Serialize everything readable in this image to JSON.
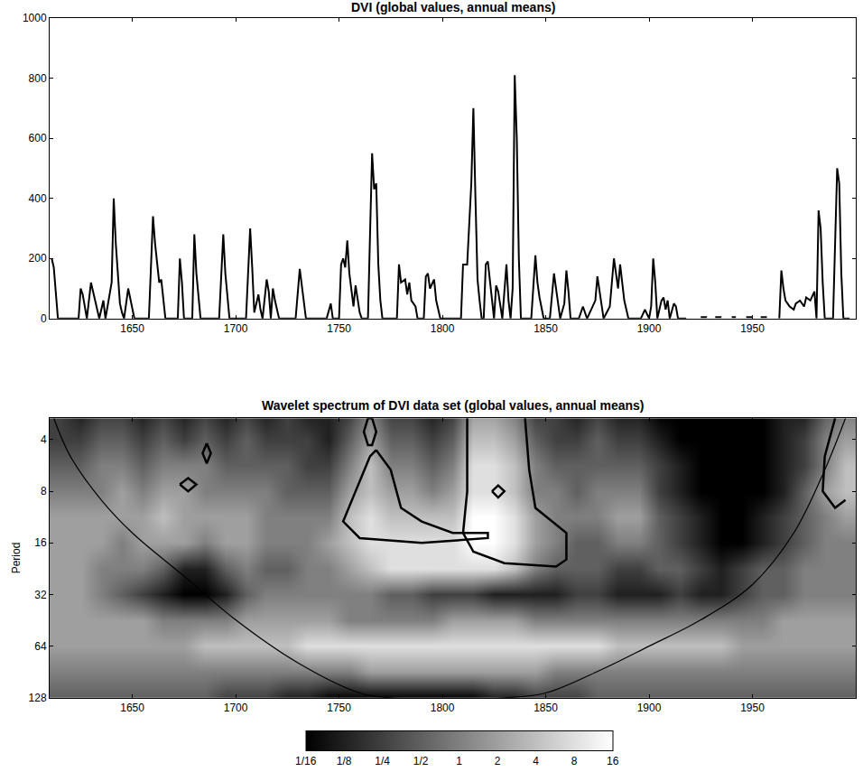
{
  "chart_data": [
    {
      "type": "line",
      "title": "DVI (global values, annual means)",
      "color": "#000000",
      "xlim": [
        1610,
        2000
      ],
      "xticks": [
        1650,
        1700,
        1750,
        1800,
        1850,
        1900,
        1950
      ],
      "ylim": [
        0,
        1000
      ],
      "yticks": [
        0,
        200,
        400,
        600,
        800,
        1000
      ],
      "x": [
        1611,
        1612,
        1614,
        1624,
        1625,
        1626,
        1628,
        1630,
        1632,
        1634,
        1636,
        1637,
        1640,
        1641,
        1642,
        1644,
        1645,
        1646,
        1648,
        1650,
        1651,
        1658,
        1660,
        1661,
        1663,
        1664,
        1666,
        1672,
        1673,
        1674,
        1675,
        1679,
        1680,
        1681,
        1683,
        1692,
        1694,
        1695,
        1697,
        1705,
        1707,
        1708,
        1709,
        1711,
        1712,
        1713,
        1715,
        1716,
        1717,
        1718,
        1719,
        1721,
        1729,
        1731,
        1732,
        1734,
        1744,
        1746,
        1747,
        1750,
        1751,
        1752,
        1753,
        1754,
        1755,
        1757,
        1758,
        1760,
        1761,
        1764,
        1765,
        1766,
        1767,
        1768,
        1769,
        1770,
        1771,
        1778,
        1779,
        1780,
        1782,
        1783,
        1784,
        1785,
        1787,
        1788,
        1791,
        1792,
        1793,
        1794,
        1796,
        1797,
        1799,
        1809,
        1810,
        1812,
        1814,
        1815,
        1816,
        1817,
        1818,
        1819,
        1820,
        1821,
        1822,
        1823,
        1825,
        1826,
        1827,
        1829,
        1831,
        1832,
        1833,
        1834,
        1835,
        1836,
        1837,
        1838,
        1843,
        1845,
        1846,
        1847,
        1849,
        1852,
        1854,
        1855,
        1857,
        1859,
        1860,
        1861,
        1862,
        1866,
        1868,
        1870,
        1874,
        1875,
        1876,
        1878,
        1881,
        1883,
        1884,
        1885,
        1886,
        1887,
        1888,
        1890,
        1896,
        1898,
        1900,
        1901,
        1902,
        1903,
        1904,
        1906,
        1907,
        1908,
        1909,
        1910,
        1912,
        1913,
        1914,
        1918,
        1919,
        1925,
        1928,
        1929,
        1932,
        1935,
        1936,
        1940,
        1942,
        1943,
        1947,
        1950,
        1951,
        1954,
        1957,
        1958,
        1963,
        1964,
        1965,
        1966,
        1968,
        1970,
        1971,
        1973,
        1975,
        1976,
        1978,
        1980,
        1981,
        1982,
        1983,
        1984,
        1985,
        1989,
        1991,
        1992,
        1993,
        1994,
        1997
      ],
      "values": [
        200,
        170,
        0,
        0,
        100,
        80,
        0,
        120,
        60,
        0,
        60,
        0,
        120,
        400,
        250,
        50,
        20,
        0,
        100,
        40,
        0,
        0,
        340,
        250,
        120,
        130,
        0,
        0,
        200,
        120,
        0,
        0,
        280,
        150,
        0,
        0,
        280,
        150,
        0,
        0,
        300,
        170,
        20,
        80,
        30,
        0,
        130,
        90,
        0,
        100,
        60,
        0,
        0,
        165,
        110,
        0,
        0,
        50,
        0,
        0,
        180,
        200,
        170,
        260,
        150,
        40,
        110,
        20,
        0,
        0,
        280,
        550,
        430,
        450,
        180,
        60,
        0,
        0,
        180,
        120,
        130,
        80,
        120,
        60,
        40,
        0,
        0,
        140,
        150,
        100,
        130,
        60,
        0,
        0,
        180,
        180,
        450,
        700,
        400,
        130,
        60,
        0,
        0,
        180,
        190,
        120,
        0,
        110,
        90,
        0,
        180,
        60,
        0,
        100,
        810,
        600,
        200,
        0,
        0,
        210,
        120,
        70,
        0,
        0,
        150,
        100,
        0,
        50,
        160,
        90,
        0,
        0,
        40,
        0,
        60,
        140,
        90,
        0,
        40,
        200,
        150,
        100,
        180,
        120,
        60,
        0,
        0,
        30,
        0,
        40,
        200,
        120,
        0,
        60,
        70,
        30,
        60,
        0,
        50,
        40,
        0,
        0,
        null,
        5,
        5,
        null,
        5,
        5,
        null,
        5,
        5,
        null,
        5,
        5,
        null,
        5,
        5,
        null,
        0,
        160,
        100,
        60,
        40,
        30,
        50,
        60,
        40,
        70,
        60,
        90,
        0,
        360,
        300,
        120,
        0,
        0,
        500,
        450,
        150,
        0,
        0
      ]
    },
    {
      "type": "heatmap",
      "title": "Wavelet spectrum of DVI data set (global values, annual means)",
      "ylabel": "Period",
      "log": "y",
      "xlim": [
        1610,
        2000
      ],
      "xticks": [
        1650,
        1700,
        1750,
        1800,
        1850,
        1900,
        1950
      ],
      "ylim": [
        128,
        3
      ],
      "yticks": [
        4,
        8,
        16,
        32,
        64,
        128
      ],
      "x": [
        1615,
        1625,
        1635,
        1645,
        1655,
        1665,
        1675,
        1685,
        1695,
        1705,
        1715,
        1725,
        1735,
        1745,
        1755,
        1765,
        1775,
        1785,
        1795,
        1805,
        1815,
        1825,
        1835,
        1845,
        1855,
        1865,
        1875,
        1885,
        1895,
        1905,
        1915,
        1925,
        1935,
        1945,
        1955,
        1965,
        1975,
        1985,
        1995
      ],
      "y": [
        2.83,
        4,
        5.66,
        8,
        11.3,
        16,
        22.6,
        32,
        45.3,
        64,
        90.5,
        128
      ],
      "cells": [
        [
          0.25,
          0.125,
          0.25,
          0.25,
          0.125,
          0.25,
          0.125,
          0.25,
          0.125,
          0.25,
          0.125,
          0.25,
          0.125,
          0.125,
          0.25,
          1,
          0.25,
          0.25,
          0.125,
          0.25,
          2,
          2,
          1,
          0.25,
          0.25,
          0.125,
          0.25,
          0.125,
          0.125,
          0.0625,
          0.0625,
          0.0625,
          0.0625,
          0.0625,
          0.0625,
          0.125,
          0.125,
          0.5,
          1
        ],
        [
          0.25,
          0.25,
          0.5,
          0.5,
          0.25,
          0.5,
          0.25,
          0.5,
          0.25,
          0.5,
          0.25,
          0.25,
          0.25,
          0.125,
          0.5,
          2,
          0.5,
          0.5,
          0.25,
          0.5,
          4,
          4,
          2,
          0.5,
          0.25,
          0.25,
          0.5,
          0.25,
          0.25,
          0.125,
          0.0625,
          0.0625,
          0.0625,
          0.0625,
          0.0625,
          0.125,
          0.25,
          1,
          2
        ],
        [
          0.5,
          0.5,
          1,
          1,
          0.5,
          1,
          1,
          1,
          0.5,
          0.5,
          0.5,
          0.5,
          0.25,
          0.25,
          1,
          4,
          1,
          1,
          0.5,
          1,
          8,
          8,
          4,
          1,
          0.5,
          0.5,
          0.5,
          0.5,
          0.5,
          0.25,
          0.125,
          0.0625,
          0.0625,
          0.0625,
          0.0625,
          0.125,
          0.25,
          1,
          4
        ],
        [
          1,
          1,
          1,
          2,
          1,
          2,
          2,
          1,
          1,
          1,
          1,
          0.5,
          0.5,
          0.5,
          2,
          4,
          2,
          2,
          1,
          2,
          8,
          8,
          4,
          1,
          1,
          0.5,
          1,
          1,
          1,
          0.25,
          0.125,
          0.0625,
          0.0625,
          0.0625,
          0.0625,
          0.125,
          0.5,
          2,
          4
        ],
        [
          2,
          2,
          2,
          2,
          2,
          4,
          2,
          2,
          2,
          2,
          1,
          1,
          1,
          1,
          4,
          8,
          4,
          4,
          4,
          4,
          16,
          16,
          8,
          2,
          1,
          1,
          1,
          2,
          2,
          0.5,
          0.25,
          0.125,
          0.0625,
          0.0625,
          0.125,
          0.25,
          0.5,
          1,
          2
        ],
        [
          2,
          2,
          2,
          1,
          2,
          2,
          2,
          1,
          2,
          2,
          1,
          1,
          1,
          2,
          4,
          8,
          8,
          8,
          8,
          8,
          16,
          16,
          8,
          2,
          1,
          0.5,
          0.5,
          1,
          1,
          0.5,
          0.25,
          0.125,
          0.0625,
          0.0625,
          0.125,
          0.25,
          0.5,
          1,
          1
        ],
        [
          2,
          2,
          1,
          1,
          1,
          0.5,
          0.125,
          0.125,
          0.5,
          1,
          0.5,
          0.5,
          1,
          1,
          2,
          4,
          8,
          8,
          8,
          8,
          8,
          8,
          4,
          1,
          0.5,
          0.5,
          0.5,
          0.25,
          0.25,
          0.5,
          0.5,
          0.25,
          0.125,
          0.25,
          0.5,
          0.5,
          1,
          1,
          1
        ],
        [
          2,
          2,
          1,
          0.5,
          0.25,
          0.125,
          0.0625,
          0.0625,
          0.125,
          0.5,
          1,
          1,
          1,
          1,
          1,
          1,
          0.5,
          0.5,
          0.25,
          0.25,
          0.25,
          0.125,
          0.125,
          0.125,
          0.125,
          0.25,
          0.25,
          0.125,
          0.125,
          0.125,
          0.25,
          0.125,
          0.125,
          0.25,
          0.5,
          0.5,
          1,
          1,
          1
        ],
        [
          2,
          2,
          2,
          2,
          2,
          1,
          1,
          1,
          1,
          2,
          2,
          2,
          2,
          2,
          1,
          1,
          1,
          1,
          1,
          2,
          2,
          2,
          2,
          1,
          1,
          1,
          1,
          1,
          1,
          1,
          1,
          1,
          1,
          1,
          1,
          2,
          2,
          2,
          2
        ],
        [
          2,
          2,
          2,
          2,
          2,
          2,
          2,
          4,
          4,
          4,
          4,
          4,
          8,
          8,
          8,
          8,
          8,
          8,
          8,
          8,
          8,
          8,
          8,
          8,
          8,
          8,
          8,
          4,
          4,
          4,
          4,
          4,
          4,
          2,
          2,
          2,
          2,
          2,
          2
        ],
        [
          1,
          1,
          1,
          1,
          1,
          1,
          1,
          1,
          1,
          1,
          1,
          1,
          1,
          1,
          1,
          2,
          2,
          2,
          2,
          2,
          2,
          2,
          2,
          2,
          1,
          1,
          1,
          1,
          1,
          1,
          1,
          1,
          1,
          1,
          1,
          1,
          1,
          1,
          1
        ],
        [
          0.5,
          0.5,
          0.5,
          0.5,
          0.5,
          0.5,
          0.5,
          0.5,
          0.25,
          0.25,
          0.25,
          0.125,
          0.125,
          0.0625,
          0.0625,
          0.0625,
          0.0625,
          0.0625,
          0.0625,
          0.0625,
          0.0625,
          0.125,
          0.125,
          0.25,
          0.25,
          0.25,
          0.5,
          0.5,
          0.5,
          0.5,
          0.5,
          0.5,
          0.5,
          0.5,
          0.5,
          0.5,
          0.5,
          0.5,
          0.5
        ]
      ],
      "colorbar_range": [
        0.0625,
        16
      ],
      "colorbar_ticks": [
        {
          "value": 0.0625,
          "label": "1/16"
        },
        {
          "value": 0.125,
          "label": "1/8"
        },
        {
          "value": 0.25,
          "label": "1/4"
        },
        {
          "value": 0.5,
          "label": "1/2"
        },
        1,
        2,
        4,
        8,
        16
      ],
      "significance_contours": [
        {
          "x": [
            1768,
            1775,
            1780,
            1790,
            1805,
            1822,
            1822,
            1790,
            1760,
            1752,
            1758,
            1765,
            1768
          ],
          "y": [
            4.6,
            6,
            10,
            12,
            14,
            14,
            15,
            16,
            15,
            12,
            8,
            5,
            4.6
          ]
        },
        {
          "x": [
            1812,
            1812,
            1810,
            1815,
            1830,
            1855,
            1860,
            1860,
            1845,
            1842,
            1840
          ],
          "y": [
            3,
            8,
            14,
            18,
            21,
            22,
            20,
            14,
            10,
            6,
            3
          ]
        },
        {
          "x": [
            1764,
            1762,
            1764,
            1766,
            1768,
            1766,
            1764
          ],
          "y": [
            3,
            3.6,
            4.3,
            4.3,
            3.6,
            3,
            3
          ]
        },
        {
          "x": [
            1686,
            1684,
            1686,
            1688,
            1686
          ],
          "y": [
            4.2,
            4.8,
            5.5,
            4.8,
            4.2
          ]
        },
        {
          "x": [
            1673,
            1677,
            1681,
            1677,
            1673
          ],
          "y": [
            7.3,
            6.7,
            7.3,
            8,
            7.3
          ]
        },
        {
          "x": [
            1824,
            1827,
            1830,
            1827,
            1824
          ],
          "y": [
            8,
            7.4,
            8,
            8.7,
            8
          ]
        },
        {
          "x": [
            1990,
            1985,
            1984,
            1990,
            1995
          ],
          "y": [
            3,
            5,
            8,
            10,
            9
          ]
        }
      ],
      "cone_of_influence": {
        "x": [
          1612,
          1620,
          1635,
          1650,
          1675,
          1700,
          1730,
          1760,
          1775,
          1830,
          1850,
          1875,
          1900,
          1925,
          1950,
          1970,
          1985,
          1995
        ],
        "y": [
          3,
          5,
          9,
          14,
          25,
          45,
          80,
          120,
          128,
          128,
          120,
          90,
          64,
          45,
          28,
          14,
          6,
          3
        ]
      }
    }
  ]
}
